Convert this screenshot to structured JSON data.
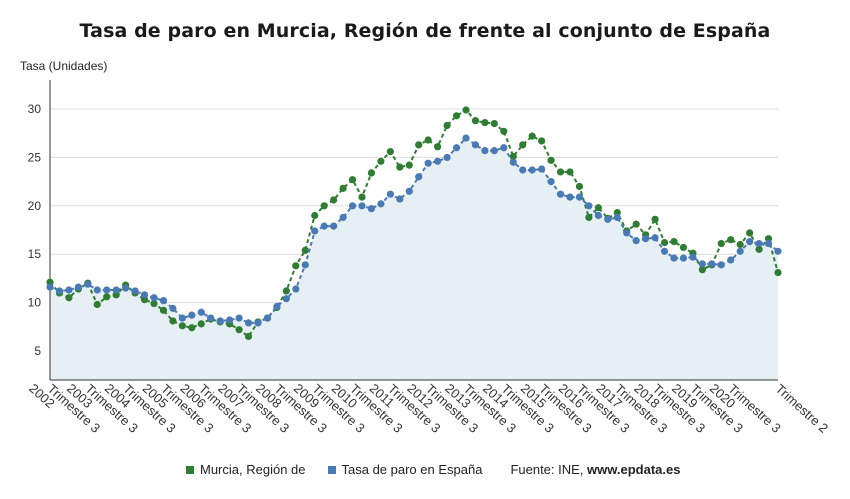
{
  "title": "Tasa de paro en Murcia, Región de frente al conjunto de España",
  "colors": {
    "murcia": "#2e7d32",
    "espana": "#4a7ab5",
    "area": "#e6eff3",
    "grid": "#dcdcdc",
    "axis": "#333333"
  },
  "legend": {
    "murcia": "Murcia, Región de",
    "espana": "Tasa de paro en España",
    "source_prefix": "Fuente: INE,",
    "source_site": "www.epdata.es"
  },
  "chart_data": {
    "type": "line",
    "title": "Tasa de paro en Murcia, Región de frente al conjunto de España",
    "ylabel": "Tasa (Unidades)",
    "xlabel": "",
    "ylim": [
      2,
      33
    ],
    "yticks": [
      5,
      10,
      15,
      20,
      25,
      30
    ],
    "grid": true,
    "legend_position": "bottom",
    "x_tick_labels": [
      "Trimestre 3 2002",
      "Trimestre 3 2003",
      "Trimestre 3 2004",
      "Trimestre 3 2005",
      "Trimestre 3 2006",
      "Trimestre 3 2007",
      "Trimestre 3 2008",
      "Trimestre 3 2009",
      "Trimestre 3 2010",
      "Trimestre 3 2011",
      "Trimestre 3 2012",
      "Trimestre 3 2013",
      "Trimestre 3 2014",
      "Trimestre 3 2015",
      "Trimestre 3 2016",
      "Trimestre 3 2017",
      "Trimestre 3 2018",
      "Trimestre 3 2019",
      "Trimestre 3 2020",
      "Trimestre 2"
    ],
    "series": [
      {
        "name": "Murcia, Región de",
        "values": [
          12.1,
          11.0,
          10.5,
          11.4,
          12.0,
          9.8,
          10.6,
          10.8,
          11.8,
          11.0,
          10.3,
          9.9,
          9.2,
          8.1,
          7.6,
          7.4,
          7.8,
          8.3,
          8.0,
          7.8,
          7.2,
          6.5,
          8.0,
          8.4,
          9.5,
          11.2,
          13.8,
          15.4,
          19.0,
          20.0,
          20.6,
          21.8,
          22.7,
          20.9,
          23.4,
          24.6,
          25.6,
          24.0,
          24.2,
          26.3,
          26.8,
          26.1,
          28.3,
          29.3,
          29.9,
          28.8,
          28.6,
          28.5,
          27.7,
          25.1,
          26.3,
          27.2,
          26.7,
          24.7,
          23.5,
          23.5,
          22.0,
          18.8,
          19.8,
          18.7,
          19.3,
          17.4,
          18.1,
          17.0,
          18.6,
          16.2,
          16.3,
          15.7,
          15.1,
          13.4,
          13.9,
          16.1,
          16.5,
          16.0,
          17.2,
          15.5,
          16.6,
          13.1
        ]
      },
      {
        "name": "Tasa de paro en España",
        "values": [
          11.6,
          11.2,
          11.3,
          11.6,
          11.9,
          11.3,
          11.3,
          11.3,
          11.5,
          11.2,
          10.8,
          10.5,
          10.2,
          9.4,
          8.4,
          8.7,
          9.0,
          8.4,
          8.1,
          8.2,
          8.4,
          7.9,
          7.9,
          8.4,
          9.6,
          10.4,
          11.4,
          13.9,
          17.4,
          17.9,
          17.9,
          18.8,
          20.0,
          20.0,
          19.7,
          20.2,
          21.2,
          20.7,
          21.5,
          23.0,
          24.4,
          24.6,
          25.0,
          26.0,
          27.0,
          26.3,
          25.7,
          25.7,
          26.0,
          24.5,
          23.7,
          23.7,
          23.8,
          22.5,
          21.2,
          20.9,
          20.9,
          20.0,
          19.0,
          18.6,
          18.8,
          17.2,
          16.4,
          16.6,
          16.7,
          15.3,
          14.6,
          14.6,
          14.7,
          14.0,
          14.0,
          13.9,
          14.4,
          15.3,
          16.3,
          16.1,
          16.1,
          15.3
        ]
      }
    ]
  }
}
